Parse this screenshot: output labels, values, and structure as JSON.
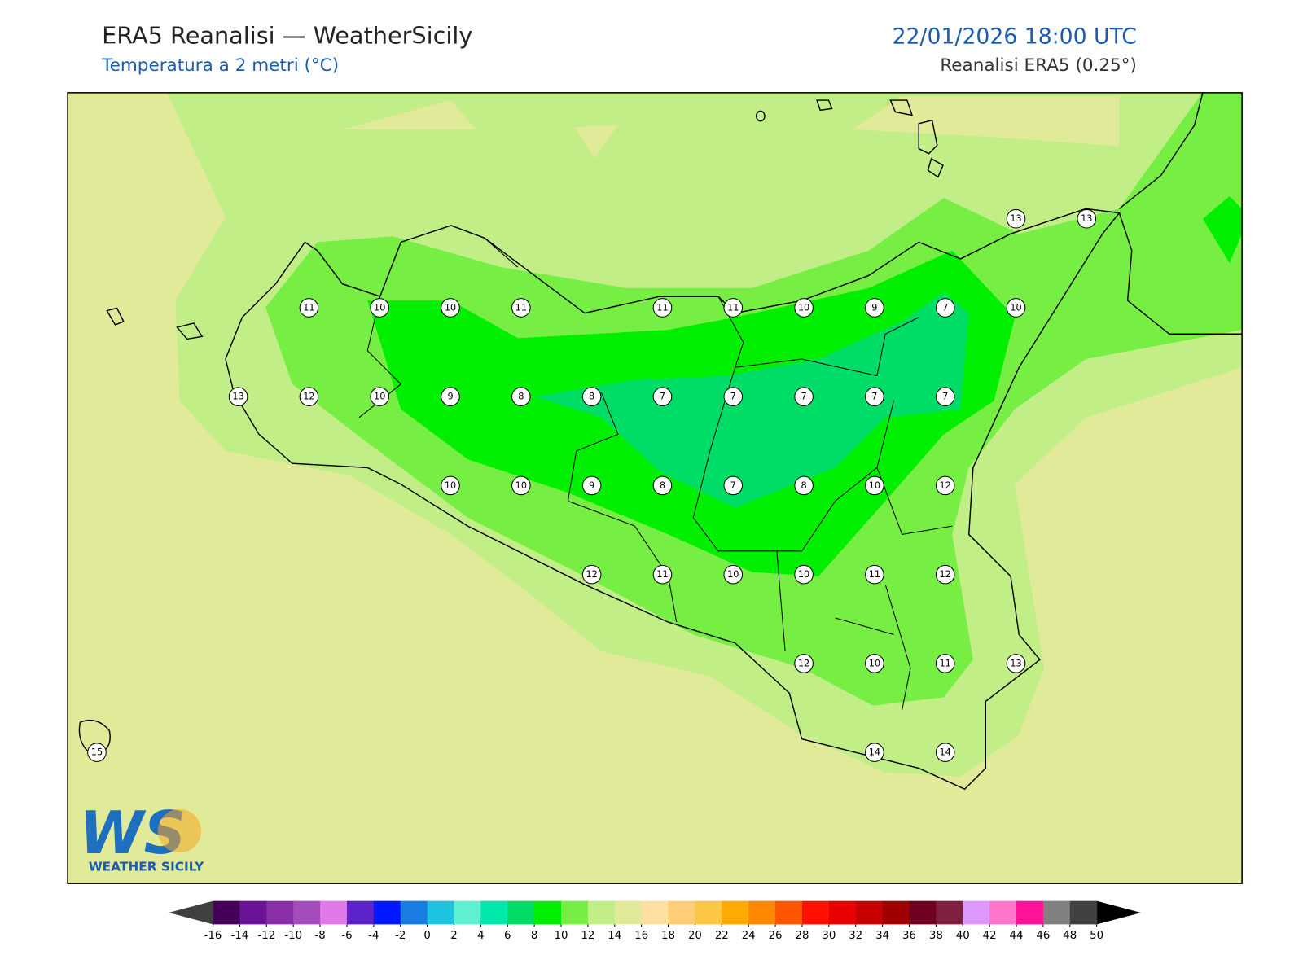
{
  "header": {
    "title": "ERA5 Reanalisi — WeatherSicily",
    "subtitle": "Temperatura a 2 metri (°C)",
    "datetime": "22/01/2026 18:00 UTC",
    "source": "Reanalisi ERA5 (0.25°)"
  },
  "stations": {
    "rows": [
      [
        null,
        null,
        null,
        null,
        null,
        null,
        null,
        null,
        null,
        null,
        null,
        null,
        null,
        13,
        13
      ],
      [
        null,
        null,
        null,
        11,
        10,
        10,
        11,
        null,
        11,
        11,
        10,
        9,
        7,
        10,
        null
      ],
      [
        null,
        null,
        13,
        12,
        10,
        9,
        8,
        8,
        7,
        7,
        7,
        7,
        7,
        null,
        null
      ],
      [
        null,
        null,
        null,
        null,
        null,
        10,
        10,
        9,
        8,
        7,
        8,
        10,
        12,
        null,
        null
      ],
      [
        null,
        null,
        null,
        null,
        null,
        null,
        null,
        12,
        11,
        10,
        10,
        11,
        12,
        null,
        null
      ],
      [
        null,
        null,
        null,
        null,
        null,
        null,
        null,
        null,
        null,
        null,
        12,
        10,
        11,
        13,
        null
      ],
      [
        15,
        null,
        null,
        null,
        null,
        null,
        null,
        null,
        null,
        null,
        null,
        14,
        14,
        null,
        null
      ]
    ]
  },
  "colorbar": {
    "ticks": [
      -16,
      -14,
      -12,
      -10,
      -8,
      -6,
      -4,
      -2,
      0,
      2,
      4,
      6,
      8,
      10,
      12,
      14,
      16,
      18,
      20,
      22,
      24,
      26,
      28,
      30,
      32,
      34,
      36,
      38,
      40,
      42,
      44,
      46,
      48,
      50
    ],
    "colors": [
      "#45005a",
      "#6b1396",
      "#8a2fa8",
      "#a44cbc",
      "#e07ae8",
      "#5a22c8",
      "#0018ff",
      "#1a7be0",
      "#1cc4e0",
      "#5ef0d0",
      "#00e8aa",
      "#00dd66",
      "#00ee00",
      "#77ee44",
      "#c2ee88",
      "#e0ea99",
      "#ffe0a0",
      "#ffcc77",
      "#ffc844",
      "#ffaa00",
      "#ff8800",
      "#ff5500",
      "#ff1100",
      "#e80000",
      "#c80000",
      "#a00000",
      "#700020",
      "#802040",
      "#dd99ff",
      "#ff77cc",
      "#ff1199",
      "#808080",
      "#404040"
    ],
    "under_color": "#404040",
    "over_color": "#000000"
  },
  "logo": {
    "mark": "WS",
    "name": "WEATHER SICILY"
  }
}
